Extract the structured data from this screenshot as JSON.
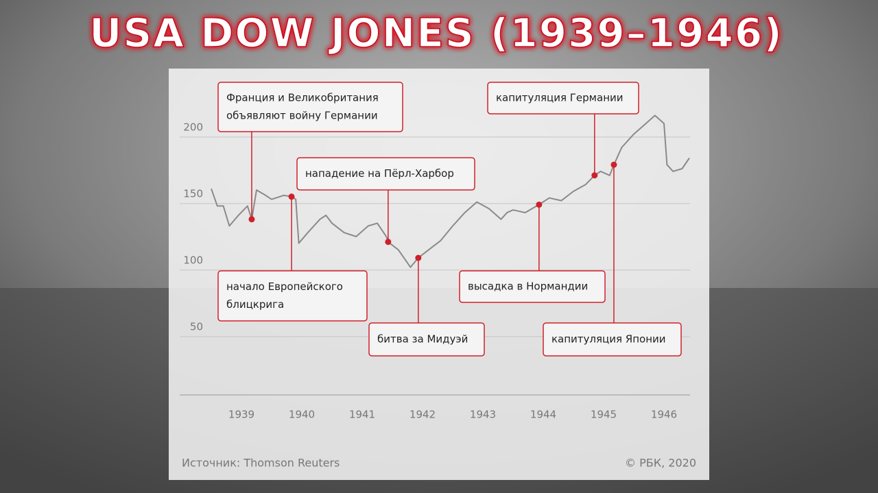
{
  "chart_data": {
    "type": "line",
    "title": "USA DOW JONES (1939–1946)",
    "source": "Источник: Thomson Reuters",
    "copyright": "© РБК, 2020",
    "color": "#8a8a8a",
    "marker_color": "#d0202a",
    "grid": true,
    "ylim": [
      0,
      220
    ],
    "yticks": [
      50,
      100,
      150,
      200
    ],
    "xlim": [
      1939,
      1947
    ],
    "xticks": [
      {
        "value": 1939.5,
        "label": "1939"
      },
      {
        "value": 1940.5,
        "label": "1940"
      },
      {
        "value": 1941.5,
        "label": "1941"
      },
      {
        "value": 1942.5,
        "label": "1942"
      },
      {
        "value": 1943.5,
        "label": "1943"
      },
      {
        "value": 1944.5,
        "label": "1944"
      },
      {
        "value": 1945.5,
        "label": "1945"
      },
      {
        "value": 1946.5,
        "label": "1946"
      }
    ],
    "x": [
      1939.0,
      1939.1,
      1939.2,
      1939.3,
      1939.45,
      1939.6,
      1939.67,
      1939.75,
      1939.9,
      1940.0,
      1940.2,
      1940.33,
      1940.4,
      1940.45,
      1940.6,
      1940.8,
      1940.9,
      1941.0,
      1941.2,
      1941.4,
      1941.6,
      1941.75,
      1941.9,
      1941.93,
      1942.1,
      1942.3,
      1942.43,
      1942.6,
      1942.8,
      1943.0,
      1943.2,
      1943.4,
      1943.6,
      1943.8,
      1943.9,
      1944.0,
      1944.2,
      1944.43,
      1944.6,
      1944.8,
      1945.0,
      1945.2,
      1945.35,
      1945.45,
      1945.6,
      1945.67,
      1945.8,
      1946.0,
      1946.2,
      1946.35,
      1946.5,
      1946.55,
      1946.65,
      1946.8,
      1946.92
    ],
    "values": [
      155,
      142,
      142,
      127,
      135,
      142,
      132,
      154,
      150,
      147,
      150,
      149,
      147,
      114,
      122,
      132,
      135,
      129,
      122,
      119,
      127,
      129,
      119,
      115,
      109,
      96,
      103,
      109,
      116,
      127,
      137,
      145,
      140,
      132,
      137,
      139,
      137,
      143,
      148,
      146,
      153,
      158,
      165,
      168,
      165,
      173,
      186,
      196,
      204,
      210,
      204,
      173,
      168,
      170,
      178
    ],
    "annotations": [
      {
        "lines": [
          "Франция и Великобритания",
          "объявляют войну Германии"
        ],
        "x": 1939.67,
        "value": 132
      },
      {
        "lines": [
          "начало Европейского",
          "блицкрига"
        ],
        "x": 1940.33,
        "value": 149
      },
      {
        "lines": [
          "нападение на Пёрл-Харбор"
        ],
        "x": 1941.93,
        "value": 115
      },
      {
        "lines": [
          "битва за Мидуэй"
        ],
        "x": 1942.43,
        "value": 103
      },
      {
        "lines": [
          "высадка в Нормандии"
        ],
        "x": 1944.43,
        "value": 143
      },
      {
        "lines": [
          "капитуляция Германии"
        ],
        "x": 1945.35,
        "value": 165
      },
      {
        "lines": [
          "капитуляция Японии"
        ],
        "x": 1945.67,
        "value": 173
      }
    ]
  }
}
